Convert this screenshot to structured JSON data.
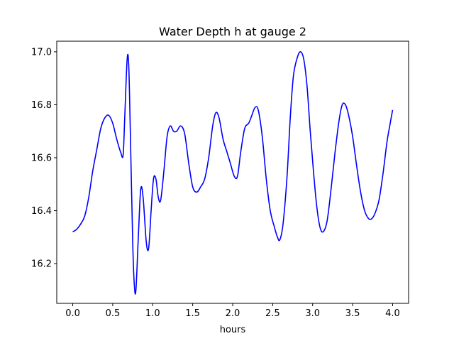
{
  "chart_data": {
    "type": "line",
    "title": "Water Depth h at gauge 2",
    "xlabel": "hours",
    "ylabel": "",
    "xlim": [
      -0.2,
      4.2
    ],
    "ylim": [
      16.05,
      17.04
    ],
    "grid": false,
    "legend": "none",
    "xticks": [
      {
        "value": 0.0,
        "label": "0.0"
      },
      {
        "value": 0.5,
        "label": "0.5"
      },
      {
        "value": 1.0,
        "label": "1.0"
      },
      {
        "value": 1.5,
        "label": "1.5"
      },
      {
        "value": 2.0,
        "label": "2.0"
      },
      {
        "value": 2.5,
        "label": "2.5"
      },
      {
        "value": 3.0,
        "label": "3.0"
      },
      {
        "value": 3.5,
        "label": "3.5"
      },
      {
        "value": 4.0,
        "label": "4.0"
      }
    ],
    "yticks": [
      {
        "value": 16.2,
        "label": "16.2"
      },
      {
        "value": 16.4,
        "label": "16.4"
      },
      {
        "value": 16.6,
        "label": "16.6"
      },
      {
        "value": 16.8,
        "label": "16.8"
      },
      {
        "value": 17.0,
        "label": "17.0"
      }
    ],
    "series": [
      {
        "color": "#0000ff",
        "points": [
          [
            0.0,
            16.32
          ],
          [
            0.05,
            16.33
          ],
          [
            0.1,
            16.35
          ],
          [
            0.15,
            16.38
          ],
          [
            0.2,
            16.45
          ],
          [
            0.25,
            16.55
          ],
          [
            0.3,
            16.63
          ],
          [
            0.35,
            16.71
          ],
          [
            0.4,
            16.75
          ],
          [
            0.45,
            16.76
          ],
          [
            0.5,
            16.73
          ],
          [
            0.55,
            16.67
          ],
          [
            0.6,
            16.62
          ],
          [
            0.63,
            16.61
          ],
          [
            0.65,
            16.75
          ],
          [
            0.68,
            16.97
          ],
          [
            0.7,
            16.95
          ],
          [
            0.72,
            16.7
          ],
          [
            0.75,
            16.28
          ],
          [
            0.77,
            16.12
          ],
          [
            0.79,
            16.1
          ],
          [
            0.82,
            16.3
          ],
          [
            0.85,
            16.48
          ],
          [
            0.88,
            16.45
          ],
          [
            0.92,
            16.28
          ],
          [
            0.95,
            16.26
          ],
          [
            0.98,
            16.4
          ],
          [
            1.01,
            16.52
          ],
          [
            1.04,
            16.52
          ],
          [
            1.07,
            16.45
          ],
          [
            1.1,
            16.44
          ],
          [
            1.14,
            16.55
          ],
          [
            1.18,
            16.68
          ],
          [
            1.22,
            16.72
          ],
          [
            1.26,
            16.7
          ],
          [
            1.3,
            16.7
          ],
          [
            1.35,
            16.72
          ],
          [
            1.4,
            16.69
          ],
          [
            1.45,
            16.58
          ],
          [
            1.5,
            16.49
          ],
          [
            1.55,
            16.47
          ],
          [
            1.6,
            16.49
          ],
          [
            1.65,
            16.52
          ],
          [
            1.7,
            16.6
          ],
          [
            1.75,
            16.72
          ],
          [
            1.79,
            16.77
          ],
          [
            1.83,
            16.75
          ],
          [
            1.88,
            16.67
          ],
          [
            1.93,
            16.62
          ],
          [
            1.97,
            16.58
          ],
          [
            2.02,
            16.53
          ],
          [
            2.06,
            16.53
          ],
          [
            2.1,
            16.62
          ],
          [
            2.15,
            16.71
          ],
          [
            2.2,
            16.73
          ],
          [
            2.24,
            16.76
          ],
          [
            2.28,
            16.79
          ],
          [
            2.32,
            16.78
          ],
          [
            2.37,
            16.68
          ],
          [
            2.42,
            16.52
          ],
          [
            2.47,
            16.4
          ],
          [
            2.52,
            16.34
          ],
          [
            2.56,
            16.3
          ],
          [
            2.59,
            16.29
          ],
          [
            2.63,
            16.35
          ],
          [
            2.68,
            16.53
          ],
          [
            2.72,
            16.75
          ],
          [
            2.76,
            16.91
          ],
          [
            2.81,
            16.98
          ],
          [
            2.85,
            17.0
          ],
          [
            2.89,
            16.97
          ],
          [
            2.93,
            16.87
          ],
          [
            2.97,
            16.7
          ],
          [
            3.01,
            16.55
          ],
          [
            3.05,
            16.42
          ],
          [
            3.09,
            16.34
          ],
          [
            3.13,
            16.32
          ],
          [
            3.18,
            16.36
          ],
          [
            3.23,
            16.48
          ],
          [
            3.28,
            16.62
          ],
          [
            3.33,
            16.74
          ],
          [
            3.37,
            16.8
          ],
          [
            3.41,
            16.8
          ],
          [
            3.45,
            16.76
          ],
          [
            3.5,
            16.68
          ],
          [
            3.55,
            16.57
          ],
          [
            3.6,
            16.47
          ],
          [
            3.65,
            16.4
          ],
          [
            3.7,
            16.37
          ],
          [
            3.74,
            16.37
          ],
          [
            3.78,
            16.39
          ],
          [
            3.83,
            16.44
          ],
          [
            3.88,
            16.54
          ],
          [
            3.93,
            16.66
          ],
          [
            3.97,
            16.73
          ],
          [
            4.0,
            16.78
          ]
        ]
      }
    ]
  }
}
